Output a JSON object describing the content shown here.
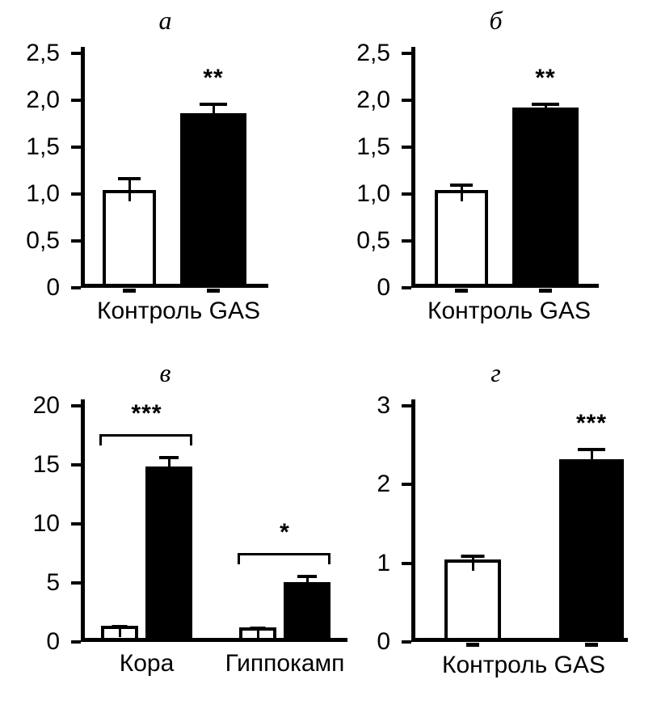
{
  "accent_colors": {
    "bar_fill_control": "#ffffff",
    "bar_fill_gas": "#000000",
    "axis": "#000000",
    "background": "#ffffff"
  },
  "chart_data": [
    {
      "type": "bar",
      "panel_label": "а",
      "xlabel": "Контроль GAS",
      "ylim": [
        0,
        2.5
      ],
      "ytick_values": [
        0,
        0.5,
        1.0,
        1.5,
        2.0,
        2.5
      ],
      "ytick_labels": [
        "0",
        "0,5",
        "1,0",
        "1,5",
        "2,0",
        "2,5"
      ],
      "categories": [
        "Контроль",
        "GAS"
      ],
      "groups": [
        {
          "label": "",
          "bars": [
            {
              "name": "Контроль",
              "value": 1.0,
              "error": 0.15,
              "color": "#ffffff"
            },
            {
              "name": "GAS",
              "value": 1.82,
              "error": 0.12,
              "color": "#000000",
              "sig": "**"
            }
          ]
        }
      ]
    },
    {
      "type": "bar",
      "panel_label": "б",
      "xlabel": "Контроль GAS",
      "ylim": [
        0,
        2.5
      ],
      "ytick_values": [
        0,
        0.5,
        1.0,
        1.5,
        2.0,
        2.5
      ],
      "ytick_labels": [
        "0",
        "0,5",
        "1,0",
        "1,5",
        "2,0",
        "2,5"
      ],
      "categories": [
        "Контроль",
        "GAS"
      ],
      "groups": [
        {
          "label": "",
          "bars": [
            {
              "name": "Контроль",
              "value": 1.0,
              "error": 0.08,
              "color": "#ffffff"
            },
            {
              "name": "GAS",
              "value": 1.88,
              "error": 0.06,
              "color": "#000000",
              "sig": "**"
            }
          ]
        }
      ]
    },
    {
      "type": "bar",
      "panel_label": "в",
      "xlabel": "",
      "ylim": [
        0,
        20
      ],
      "ytick_values": [
        0,
        5,
        10,
        15,
        20
      ],
      "ytick_labels": [
        "0",
        "5",
        "10",
        "15",
        "20"
      ],
      "categories": [
        "Кора",
        "Гиппокамп"
      ],
      "series": [
        {
          "name": "Контроль",
          "values": [
            1.0,
            0.9
          ]
        },
        {
          "name": "GAS",
          "values": [
            14.5,
            4.7
          ]
        }
      ],
      "groups": [
        {
          "label": "Кора",
          "bracket_sig": "***",
          "bars": [
            {
              "name": "Контроль",
              "value": 1.0,
              "error": 0.15,
              "color": "#ffffff"
            },
            {
              "name": "GAS",
              "value": 14.5,
              "error": 1.0,
              "color": "#000000"
            }
          ]
        },
        {
          "label": "Гиппокамп",
          "bracket_sig": "*",
          "bars": [
            {
              "name": "Контроль",
              "value": 0.9,
              "error": 0.15,
              "color": "#ffffff"
            },
            {
              "name": "GAS",
              "value": 4.7,
              "error": 0.7,
              "color": "#000000"
            }
          ]
        }
      ]
    },
    {
      "type": "bar",
      "panel_label": "г",
      "xlabel": "Контроль GAS",
      "ylim": [
        0,
        3
      ],
      "ytick_values": [
        0,
        1,
        2,
        3
      ],
      "ytick_labels": [
        "0",
        "1",
        "2",
        "3"
      ],
      "categories": [
        "Контроль",
        "GAS"
      ],
      "groups": [
        {
          "label": "",
          "bars": [
            {
              "name": "Контроль",
              "value": 1.0,
              "error": 0.07,
              "color": "#ffffff"
            },
            {
              "name": "GAS",
              "value": 2.27,
              "error": 0.15,
              "color": "#000000",
              "sig": "***"
            }
          ]
        }
      ]
    }
  ]
}
